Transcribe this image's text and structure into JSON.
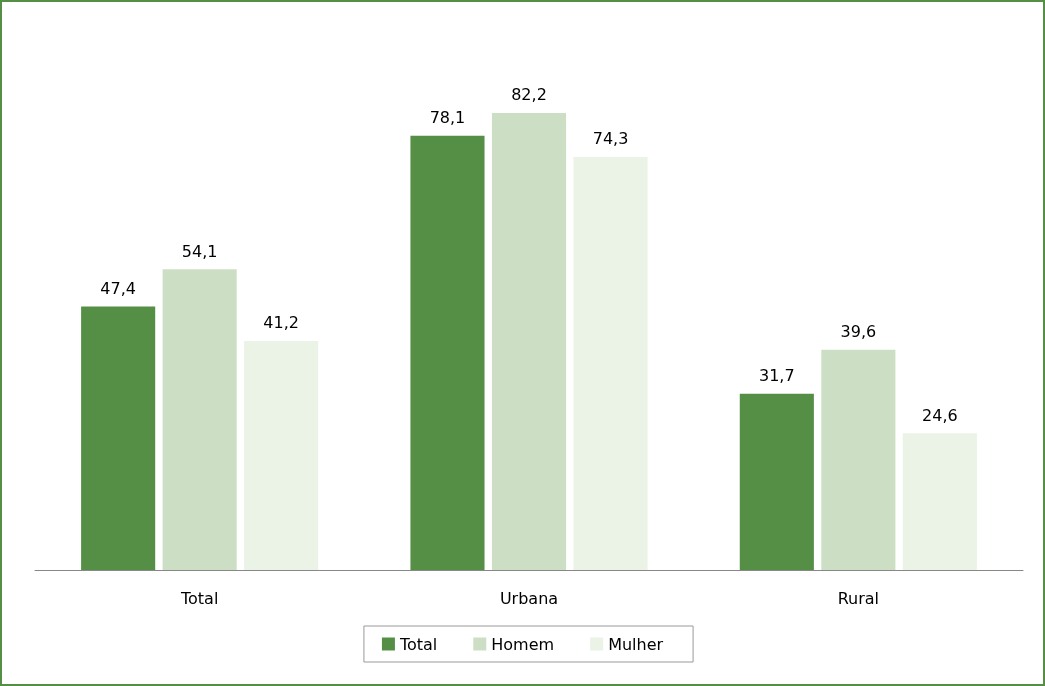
{
  "chart_data": {
    "type": "bar",
    "categories": [
      "Total",
      "Urbana",
      "Rural"
    ],
    "series": [
      {
        "name": "Total",
        "color": "#548f45",
        "values": [
          47.4,
          78.1,
          31.7
        ],
        "value_labels": [
          "47,4",
          "78,1",
          "31,7"
        ]
      },
      {
        "name": "Homem",
        "color": "#ccdfc4",
        "values": [
          54.1,
          82.2,
          39.6
        ],
        "value_labels": [
          "54,1",
          "82,2",
          "39,6"
        ]
      },
      {
        "name": "Mulher",
        "color": "#ebf3e6",
        "values": [
          41.2,
          74.3,
          24.6
        ],
        "value_labels": [
          "41,2",
          "74,3",
          "24,6"
        ]
      }
    ],
    "legend": "bottom"
  }
}
